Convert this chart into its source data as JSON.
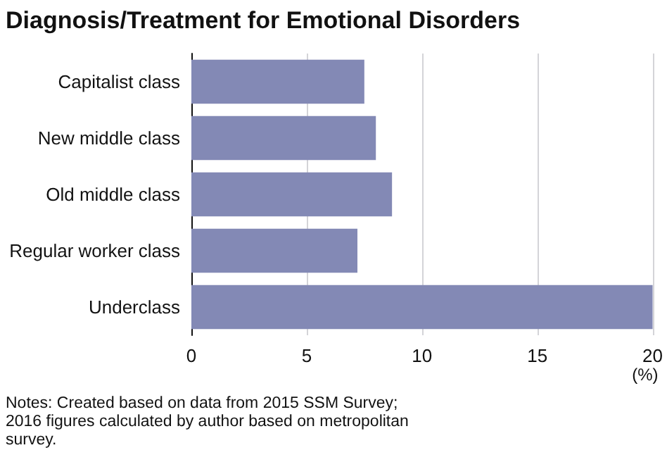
{
  "chart_data": {
    "type": "bar",
    "orientation": "horizontal",
    "title": "Diagnosis/Treatment for Emotional Disorders",
    "categories": [
      "Capitalist class",
      "New middle class",
      "Old middle class",
      "Regular worker class",
      "Underclass"
    ],
    "values": [
      7.5,
      8.0,
      8.7,
      7.2,
      20.0
    ],
    "color": "#8389b5",
    "xlim": [
      0,
      20
    ],
    "xticks": [
      0,
      5,
      10,
      15,
      20
    ],
    "xlabel": "(%)",
    "grid": "x",
    "annotations": [
      "Notes: Created based on data from 2015 SSM Survey; 2016 figures calculated by author based on metropolitan survey."
    ]
  }
}
